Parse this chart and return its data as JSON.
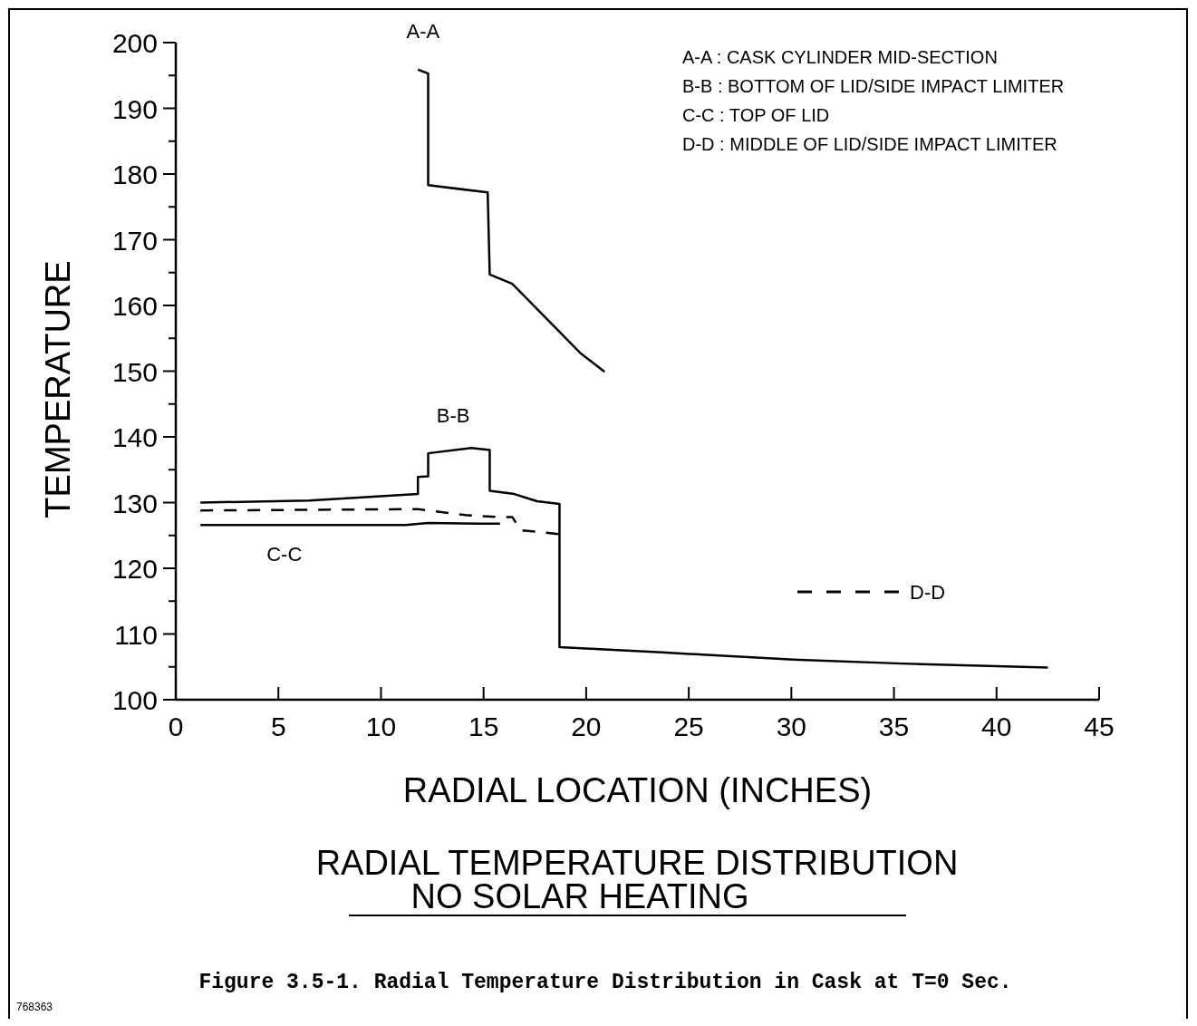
{
  "chart_data": {
    "type": "line",
    "title": "RADIAL TEMPERATURE DISTRIBUTION",
    "subtitle": "NO SOLAR HEATING",
    "xlabel": "RADIAL LOCATION (INCHES)",
    "ylabel": "TEMPERATURE",
    "xlim": [
      0,
      45
    ],
    "xticks": [
      0,
      5,
      10,
      15,
      20,
      25,
      30,
      35,
      40,
      45
    ],
    "ylim": [
      100,
      200
    ],
    "yticks": [
      100,
      {
        "value": 105,
        "label": null
      },
      110,
      {
        "value": 115,
        "label": null
      },
      120,
      {
        "value": 125,
        "label": null
      },
      130,
      {
        "value": 135,
        "label": null
      },
      140,
      {
        "value": 145,
        "label": null
      },
      150,
      {
        "value": 155,
        "label": null
      },
      160,
      {
        "value": 165,
        "label": null
      },
      170,
      {
        "value": 175,
        "label": null
      },
      180,
      {
        "value": 185,
        "label": null
      },
      190,
      {
        "value": 195,
        "label": null
      },
      200
    ],
    "grid": false,
    "legend": "right",
    "marker": "none",
    "series": [
      {
        "name": "A-A",
        "color": "#000000",
        "line_style": "solid",
        "x": [
          11.8,
          12.3,
          12.3,
          15.2,
          15.3,
          16.4,
          19.7,
          20.9
        ],
        "values": [
          195.9,
          195.3,
          178.3,
          177.2,
          164.7,
          163.3,
          152.8,
          149.9
        ]
      },
      {
        "name": "B-B",
        "color": "#000000",
        "line_style": "solid",
        "x": [
          1.2,
          6.5,
          11.8,
          11.8,
          12.3,
          12.3,
          14.4,
          15.3,
          15.3,
          16.5,
          17.6,
          18.7,
          18.7,
          23.7,
          30.1,
          35.4,
          42.5
        ],
        "values": [
          130.0,
          130.3,
          131.3,
          133.9,
          134.0,
          137.5,
          138.3,
          138.0,
          131.8,
          131.3,
          130.2,
          129.8,
          108.0,
          107.2,
          106.1,
          105.5,
          104.9
        ]
      },
      {
        "name": "C-C",
        "color": "#000000",
        "line_style": "solid",
        "x": [
          1.2,
          11.2,
          12.3,
          14.8,
          15.8
        ],
        "values": [
          126.6,
          126.6,
          126.9,
          126.8,
          126.8
        ]
      },
      {
        "name": "D-D",
        "color": "#000000",
        "line_style": "dashed",
        "x": [
          1.2,
          11.8,
          12.6,
          14.1,
          15.7,
          16.4,
          16.8,
          18.7
        ],
        "values": [
          128.8,
          129.0,
          128.7,
          128.1,
          127.8,
          127.8,
          125.8,
          125.2
        ]
      }
    ],
    "annotations": [
      "A-A : CASK CYLINDER MID-SECTION",
      "B-B : BOTTOM OF LID/SIDE IMPACT LIMITER",
      "C-C : TOP OF LID",
      "D-D : MIDDLE OF LID/SIDE IMPACT LIMITER",
      "Figure 3.5-1.  Radial Temperature Distribution in Cask at T=0 Sec.",
      "768363"
    ]
  }
}
